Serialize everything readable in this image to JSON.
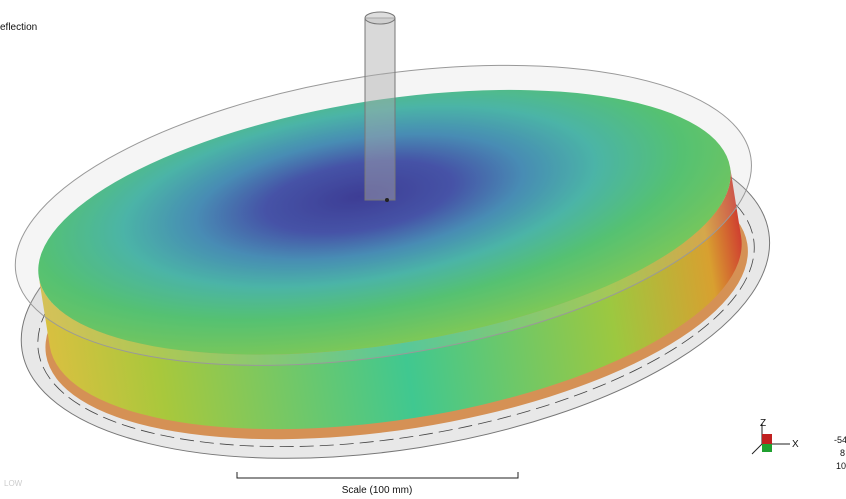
{
  "viewport": {
    "title": "eflection",
    "scale_label": "Scale (100 mm)",
    "watermark": "LOW"
  },
  "axes": {
    "z": "Z",
    "x": "X"
  },
  "coordinates": [
    "-54",
    "8",
    "10"
  ]
}
